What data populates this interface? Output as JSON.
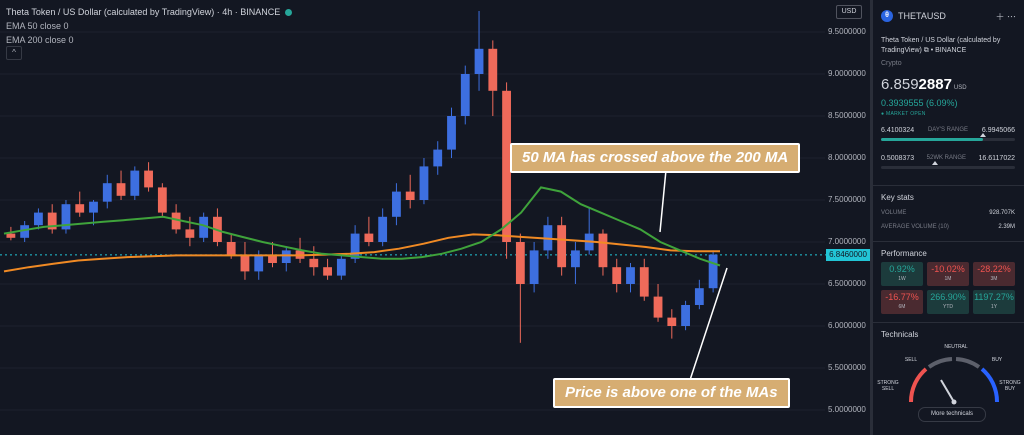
{
  "legend": {
    "title": "Theta Token / US Dollar (calculated by TradingView) · 4h · BINANCE",
    "ema50": "EMA 50 close 0",
    "ema200": "EMA 200 close 0",
    "collapse": "^"
  },
  "toolbar": {
    "currency": "USD"
  },
  "price_axis": [
    "9.5000000",
    "9.0000000",
    "8.5000000",
    "8.0000000",
    "7.5000000",
    "7.0000000",
    "6.5000000",
    "6.0000000",
    "5.5000000",
    "5.0000000"
  ],
  "current_price_tag": "6.8460000",
  "callouts": {
    "ma_cross": "50 MA has crossed above the 200 MA",
    "price_above": "Price is above one of the MAs"
  },
  "chart_data": {
    "type": "candlestick",
    "title": "Theta Token / US Dollar (calculated by TradingView) · 4h · BINANCE",
    "ylim": [
      4.9,
      9.9
    ],
    "y_ticks": [
      5.0,
      5.5,
      6.0,
      6.5,
      7.0,
      7.5,
      8.0,
      8.5,
      9.0,
      9.5
    ],
    "last_price": 6.846,
    "series_names": [
      "EMA 50 close 0",
      "EMA 200 close 0"
    ],
    "candles": [
      [
        7.1,
        7.18,
        7.02,
        7.05
      ],
      [
        7.05,
        7.25,
        7.0,
        7.2
      ],
      [
        7.2,
        7.4,
        7.15,
        7.35
      ],
      [
        7.35,
        7.45,
        7.1,
        7.15
      ],
      [
        7.15,
        7.5,
        7.1,
        7.45
      ],
      [
        7.45,
        7.6,
        7.3,
        7.35
      ],
      [
        7.35,
        7.5,
        7.2,
        7.48
      ],
      [
        7.48,
        7.8,
        7.4,
        7.7
      ],
      [
        7.7,
        7.85,
        7.5,
        7.55
      ],
      [
        7.55,
        7.9,
        7.5,
        7.85
      ],
      [
        7.85,
        7.95,
        7.6,
        7.65
      ],
      [
        7.65,
        7.7,
        7.3,
        7.35
      ],
      [
        7.35,
        7.45,
        7.1,
        7.15
      ],
      [
        7.15,
        7.3,
        6.95,
        7.05
      ],
      [
        7.05,
        7.35,
        7.0,
        7.3
      ],
      [
        7.3,
        7.4,
        6.95,
        7.0
      ],
      [
        7.0,
        7.1,
        6.8,
        6.85
      ],
      [
        6.85,
        7.0,
        6.55,
        6.65
      ],
      [
        6.65,
        6.9,
        6.55,
        6.85
      ],
      [
        6.85,
        7.0,
        6.7,
        6.75
      ],
      [
        6.75,
        6.95,
        6.65,
        6.9
      ],
      [
        6.9,
        7.05,
        6.75,
        6.8
      ],
      [
        6.8,
        6.95,
        6.6,
        6.7
      ],
      [
        6.7,
        6.8,
        6.55,
        6.6
      ],
      [
        6.6,
        6.85,
        6.55,
        6.8
      ],
      [
        6.8,
        7.2,
        6.75,
        7.1
      ],
      [
        7.1,
        7.3,
        6.95,
        7.0
      ],
      [
        7.0,
        7.4,
        6.95,
        7.3
      ],
      [
        7.3,
        7.7,
        7.2,
        7.6
      ],
      [
        7.6,
        7.8,
        7.4,
        7.5
      ],
      [
        7.5,
        8.0,
        7.45,
        7.9
      ],
      [
        7.9,
        8.2,
        7.8,
        8.1
      ],
      [
        8.1,
        8.6,
        8.0,
        8.5
      ],
      [
        8.5,
        9.1,
        8.4,
        9.0
      ],
      [
        9.0,
        9.75,
        8.8,
        9.3
      ],
      [
        9.3,
        9.4,
        8.5,
        8.8
      ],
      [
        8.8,
        8.9,
        6.8,
        7.0
      ],
      [
        7.0,
        7.1,
        5.8,
        6.5
      ],
      [
        6.5,
        7.0,
        6.4,
        6.9
      ],
      [
        6.9,
        7.3,
        6.8,
        7.2
      ],
      [
        7.2,
        7.3,
        6.6,
        6.7
      ],
      [
        6.7,
        7.0,
        6.5,
        6.9
      ],
      [
        6.9,
        7.4,
        6.85,
        7.1
      ],
      [
        7.1,
        7.15,
        6.6,
        6.7
      ],
      [
        6.7,
        6.8,
        6.4,
        6.5
      ],
      [
        6.5,
        6.75,
        6.4,
        6.7
      ],
      [
        6.7,
        6.8,
        6.3,
        6.35
      ],
      [
        6.35,
        6.5,
        6.05,
        6.1
      ],
      [
        6.1,
        6.2,
        5.85,
        6.0
      ],
      [
        6.0,
        6.3,
        5.95,
        6.25
      ],
      [
        6.25,
        6.55,
        6.2,
        6.45
      ],
      [
        6.45,
        6.9,
        6.4,
        6.85
      ]
    ],
    "ema50": [
      7.1,
      7.14,
      7.18,
      7.2,
      7.22,
      7.24,
      7.26,
      7.28,
      7.3,
      7.25,
      7.2,
      7.12,
      7.06,
      7.0,
      6.95,
      6.9,
      6.86,
      6.84,
      6.82,
      6.8,
      6.8,
      6.82,
      6.86,
      6.92,
      7.0,
      7.15,
      7.35,
      7.65,
      7.6,
      7.45,
      7.35,
      7.25,
      7.15,
      7.0,
      6.9,
      6.8,
      6.72
    ],
    "ema200": [
      6.65,
      6.7,
      6.74,
      6.78,
      6.8,
      6.82,
      6.83,
      6.84,
      6.84,
      6.84,
      6.84,
      6.84,
      6.84,
      6.85,
      6.86,
      6.88,
      6.92,
      6.98,
      7.05,
      7.09,
      7.08,
      7.06,
      7.04,
      7.02,
      7.0,
      6.97,
      6.94,
      6.9,
      6.89,
      6.89
    ]
  },
  "panel": {
    "symbol": "THETAUSD",
    "logo_letter": "θ",
    "icons": "＋ ⋯",
    "description": "Theta Token / US Dollar (calculated by TradingView) ⧉ • BINANCE",
    "category": "Crypto",
    "price_main": "6.859",
    "price_accent": "2887",
    "unit": "USD",
    "change": "0.3939555 (6.09%)",
    "status": "● MARKET OPEN",
    "day_range": {
      "low": "6.4100324",
      "label": "DAY'S RANGE",
      "high": "6.9945066",
      "fill": 0.76
    },
    "week_range": {
      "low": "0.5008373",
      "label": "52WK RANGE",
      "high": "16.6117022",
      "fill": 0.4
    },
    "key_stats_title": "Key stats",
    "volume_label": "VOLUME",
    "volume": "928.707K",
    "avg_volume_label": "AVERAGE VOLUME (10)",
    "avg_volume": "2.39M",
    "performance_title": "Performance",
    "performance": [
      {
        "value": "0.92%",
        "period": "1W",
        "dir": "pos"
      },
      {
        "value": "-10.02%",
        "period": "1M",
        "dir": "neg"
      },
      {
        "value": "-28.22%",
        "period": "3M",
        "dir": "neg"
      },
      {
        "value": "-16.77%",
        "period": "6M",
        "dir": "neg"
      },
      {
        "value": "266.90%",
        "period": "YTD",
        "dir": "pos"
      },
      {
        "value": "1197.27%",
        "period": "1Y",
        "dir": "pos"
      }
    ],
    "technicals_title": "Technicals",
    "gauge": {
      "neutral": "NEUTRAL",
      "sell": "SELL",
      "buy": "BUY",
      "strong_sell": "STRONG SELL",
      "strong_buy": "STRONG BUY"
    },
    "more_button": "More technicals"
  },
  "colors": {
    "bull": "#3d6fe0",
    "bear": "#ef6a5a",
    "ema50": "#3fa33b",
    "ema200": "#f08a24",
    "price_line": "#22c5d6",
    "callout": "#d6ad72"
  }
}
